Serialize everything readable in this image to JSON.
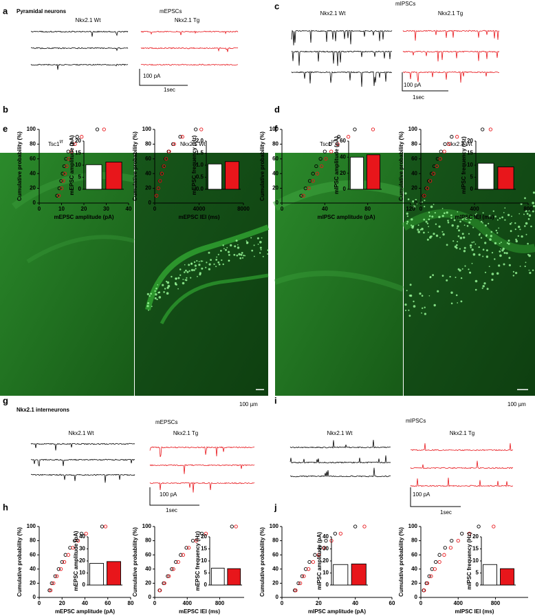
{
  "panels": {
    "a": {
      "letter": "a",
      "title": "Pyramidal neurons",
      "recording": "mEPSCs",
      "wt": "Nkx2.1 Wt",
      "tg": "Nkx2.1 Tg",
      "scale_current": "100 pA",
      "scale_time": "1sec"
    },
    "b": {
      "letter": "b"
    },
    "c": {
      "letter": "c",
      "recording": "mIPSCs",
      "wt": "Nkx2.1 Wt",
      "tg": "Nkx2.1 Tg",
      "scale_current": "100 pA",
      "scale_time": "1sec"
    },
    "d": {
      "letter": "d"
    },
    "e": {
      "letter": "e",
      "left": "Tsc1",
      "left_sup": "f/f",
      "right": "Nkx2.1 Wt",
      "scale": "100 µm"
    },
    "f": {
      "letter": "f",
      "left": "Tsc1",
      "left_sup": "f/f",
      "right": "Nkx2.1 Wt",
      "scale": "100 µm"
    },
    "g": {
      "letter": "g",
      "title": "Nkx2.1 interneurons",
      "recording": "mEPSCs",
      "wt": "Nkx2.1 Wt",
      "tg": "Nkx2.1 Tg",
      "scale_current": "100 pA",
      "scale_time": "1sec"
    },
    "h": {
      "letter": "h"
    },
    "i": {
      "letter": "i",
      "recording": "mIPSCs",
      "wt": "Nkx2.1 Wt",
      "tg": "Nkx2.1 Tg",
      "scale_current": "100 pA",
      "scale_time": "1sec"
    },
    "j": {
      "letter": "j"
    }
  },
  "chart_data": [
    {
      "type": "scatter",
      "xlabel": "mEPSC amplitude (pA)",
      "ylabel": "Cumulative probability (%)",
      "xlim": [
        0,
        40
      ],
      "ylim": [
        0,
        100
      ],
      "xticks": [
        0,
        10,
        20,
        30,
        40
      ],
      "yticks": [
        0,
        20,
        40,
        60,
        80,
        100
      ],
      "series": [
        {
          "color": "#000000",
          "x": [
            8,
            9,
            9.8,
            10.5,
            11.2,
            12,
            13,
            14.5,
            17,
            26
          ],
          "values": [
            10,
            20,
            30,
            40,
            50,
            60,
            70,
            80,
            90,
            100
          ]
        },
        {
          "color": "#e8161b",
          "x": [
            8.8,
            10,
            10.8,
            11.5,
            12.3,
            13.2,
            14.3,
            16,
            19,
            29
          ],
          "values": [
            10,
            20,
            30,
            40,
            50,
            60,
            70,
            80,
            90,
            100
          ]
        }
      ]
    },
    {
      "type": "bar",
      "ylabel": "mEPSC amplitude (pA)",
      "ylim": [
        0,
        20
      ],
      "yticks": [
        0,
        5,
        10,
        15,
        20
      ],
      "values": [
        10.2,
        11.3
      ],
      "colors": [
        "#ffffff",
        "#e8161b"
      ]
    },
    {
      "type": "scatter",
      "xlabel": "mEPSC IEI (ms)",
      "ylabel": "Cumulative probability (%)",
      "xlim": [
        0,
        8000
      ],
      "ylim": [
        0,
        100
      ],
      "xticks": [
        0,
        4000,
        8000
      ],
      "yticks": [
        0,
        20,
        40,
        60,
        80,
        100
      ],
      "series": [
        {
          "color": "#000000",
          "x": [
            150,
            300,
            450,
            600,
            780,
            980,
            1250,
            1650,
            2300,
            3700
          ],
          "values": [
            10,
            20,
            30,
            40,
            50,
            60,
            70,
            80,
            90,
            100
          ]
        },
        {
          "color": "#e8161b",
          "x": [
            160,
            320,
            480,
            640,
            820,
            1030,
            1300,
            1750,
            2500,
            4200
          ],
          "values": [
            10,
            20,
            30,
            40,
            50,
            60,
            70,
            80,
            90,
            100
          ]
        }
      ]
    },
    {
      "type": "bar",
      "ylabel": "mEPSC frequency (Hz)",
      "ylim": [
        0,
        2
      ],
      "yticks": [
        {
          "value": 0,
          "label": "0.0"
        },
        0.5,
        {
          "value": 1,
          "label": "1.0"
        },
        1.5,
        {
          "value": 2,
          "label": "2.0"
        }
      ],
      "values": [
        1.05,
        1.15
      ],
      "colors": [
        "#ffffff",
        "#e8161b"
      ]
    },
    {
      "type": "scatter",
      "xlabel": "mIPSC amplitude (pA)",
      "ylabel": "Cumulative probability (%)",
      "xlim": [
        0,
        120
      ],
      "ylim": [
        0,
        100
      ],
      "xticks": [
        0,
        40,
        80,
        120
      ],
      "yticks": [
        0,
        20,
        40,
        60,
        80,
        100
      ],
      "series": [
        {
          "color": "#000000",
          "x": [
            18,
            22,
            26,
            29,
            32,
            36,
            40,
            45,
            53,
            68
          ],
          "values": [
            10,
            20,
            30,
            40,
            50,
            60,
            70,
            80,
            90,
            100
          ]
        },
        {
          "color": "#e8161b",
          "x": [
            20,
            25,
            29,
            33,
            37,
            41,
            46,
            52,
            62,
            85
          ],
          "values": [
            10,
            20,
            30,
            40,
            50,
            60,
            70,
            80,
            90,
            100
          ]
        }
      ]
    },
    {
      "type": "bar",
      "ylabel": "mIPSC amplitude (pA)",
      "ylim": [
        0,
        60
      ],
      "yticks": [
        0,
        20,
        40,
        60
      ],
      "values": [
        40,
        43
      ],
      "colors": [
        "#ffffff",
        "#e8161b"
      ]
    },
    {
      "type": "scatter",
      "xlabel": "mIPSC IEI (ms)",
      "ylabel": "Cumulative probability (%)",
      "xlim": [
        0,
        800
      ],
      "ylim": [
        0,
        100
      ],
      "xticks": [
        0,
        400,
        800
      ],
      "yticks": [
        0,
        20,
        40,
        60,
        80,
        100
      ],
      "series": [
        {
          "color": "#000000",
          "x": [
            20,
            40,
            60,
            80,
            100,
            125,
            150,
            180,
            230,
            460
          ],
          "values": [
            10,
            20,
            30,
            40,
            50,
            60,
            70,
            80,
            90,
            100
          ]
        },
        {
          "color": "#e8161b",
          "x": [
            25,
            48,
            70,
            95,
            120,
            145,
            175,
            210,
            270,
            520
          ],
          "values": [
            10,
            20,
            30,
            40,
            50,
            60,
            70,
            80,
            90,
            100
          ]
        }
      ]
    },
    {
      "type": "bar",
      "ylabel": "mIPSC frequency (Hz)",
      "ylim": [
        0,
        20
      ],
      "yticks": [
        0,
        5,
        10,
        15,
        20
      ],
      "values": [
        10.8,
        9.3
      ],
      "colors": [
        "#ffffff",
        "#e8161b"
      ]
    },
    {
      "type": "scatter",
      "xlabel": "mEPSC amplitude (pA)",
      "ylabel": "Cumulative probability (%)",
      "xlim": [
        0,
        80
      ],
      "ylim": [
        0,
        100
      ],
      "xticks": [
        0,
        20,
        40,
        60,
        80
      ],
      "yticks": [
        0,
        20,
        40,
        60,
        80,
        100
      ],
      "series": [
        {
          "color": "#000000",
          "x": [
            9,
            11,
            14,
            17,
            20,
            23,
            27,
            31,
            37,
            55
          ],
          "values": [
            10,
            20,
            30,
            40,
            50,
            60,
            70,
            80,
            90,
            100
          ]
        },
        {
          "color": "#e8161b",
          "x": [
            10,
            12.5,
            15.5,
            19,
            22,
            25.5,
            29.5,
            34,
            41,
            58
          ],
          "values": [
            10,
            20,
            30,
            40,
            50,
            60,
            70,
            80,
            90,
            100
          ]
        }
      ]
    },
    {
      "type": "bar",
      "ylabel": "mEPSC amplitude (pA)",
      "ylim": [
        0,
        40
      ],
      "yticks": [
        0,
        10,
        20,
        30,
        40
      ],
      "values": [
        18,
        19.5
      ],
      "colors": [
        "#ffffff",
        "#e8161b"
      ]
    },
    {
      "type": "scatter",
      "xlabel": "mEPSC IEI (ms)",
      "ylabel": "Cumulative probability (%)",
      "xlim": [
        0,
        1100
      ],
      "ylim": [
        0,
        100
      ],
      "xticks": [
        0,
        400,
        800
      ],
      "yticks": [
        0,
        20,
        40,
        60,
        80,
        100
      ],
      "series": [
        {
          "color": "#000000",
          "x": [
            60,
            110,
            160,
            210,
            260,
            320,
            390,
            470,
            580,
            950
          ],
          "values": [
            10,
            20,
            30,
            40,
            50,
            60,
            70,
            80,
            90,
            100
          ]
        },
        {
          "color": "#e8161b",
          "x": [
            65,
            120,
            175,
            230,
            290,
            350,
            420,
            510,
            630,
            1000
          ],
          "values": [
            10,
            20,
            30,
            40,
            50,
            60,
            70,
            80,
            90,
            100
          ]
        }
      ]
    },
    {
      "type": "bar",
      "ylabel": "mEPSC frequency (Hz)",
      "ylim": [
        0,
        20
      ],
      "yticks": [
        0,
        5,
        10,
        15,
        20
      ],
      "values": [
        7,
        6.8
      ],
      "colors": [
        "#ffffff",
        "#e8161b"
      ]
    },
    {
      "type": "scatter",
      "xlabel": "mIPSC amplitude (pA)",
      "ylabel": "Cumulative probability (%)",
      "xlim": [
        0,
        60
      ],
      "ylim": [
        0,
        100
      ],
      "xticks": [
        0,
        20,
        40,
        60
      ],
      "yticks": [
        0,
        20,
        40,
        60,
        80,
        100
      ],
      "series": [
        {
          "color": "#000000",
          "x": [
            7,
            9,
            11,
            13,
            15,
            18,
            21,
            24,
            29,
            40
          ],
          "values": [
            10,
            20,
            30,
            40,
            50,
            60,
            70,
            80,
            90,
            100
          ]
        },
        {
          "color": "#e8161b",
          "x": [
            7.5,
            10,
            12,
            14.5,
            17,
            20,
            23,
            27,
            32,
            45
          ],
          "values": [
            10,
            20,
            30,
            40,
            50,
            60,
            70,
            80,
            90,
            100
          ]
        }
      ]
    },
    {
      "type": "bar",
      "ylabel": "mIPSC amplitude (pA)",
      "ylim": [
        0,
        40
      ],
      "yticks": [
        0,
        10,
        20,
        30,
        40
      ],
      "values": [
        17,
        17.5
      ],
      "colors": [
        "#ffffff",
        "#e8161b"
      ]
    },
    {
      "type": "scatter",
      "xlabel": "mIPSC IEI (ms)",
      "ylabel": "Cumulative probability (%)",
      "xlim": [
        0,
        1150
      ],
      "ylim": [
        0,
        100
      ],
      "xticks": [
        0,
        400,
        800
      ],
      "yticks": [
        0,
        20,
        40,
        60,
        80,
        100
      ],
      "series": [
        {
          "color": "#000000",
          "x": [
            30,
            60,
            90,
            120,
            160,
            200,
            260,
            330,
            440,
            620
          ],
          "values": [
            10,
            20,
            30,
            40,
            50,
            60,
            70,
            80,
            90,
            100
          ]
        },
        {
          "color": "#e8161b",
          "x": [
            35,
            70,
            110,
            150,
            200,
            250,
            320,
            400,
            520,
            780
          ],
          "values": [
            10,
            20,
            30,
            40,
            50,
            60,
            70,
            80,
            90,
            100
          ]
        }
      ]
    },
    {
      "type": "bar",
      "ylabel": "mIPSC frequency (Hz)",
      "ylim": [
        0,
        20
      ],
      "yticks": [
        0,
        5,
        10,
        15,
        20
      ],
      "values": [
        8.5,
        6.8
      ],
      "colors": [
        "#ffffff",
        "#e8161b"
      ]
    }
  ]
}
